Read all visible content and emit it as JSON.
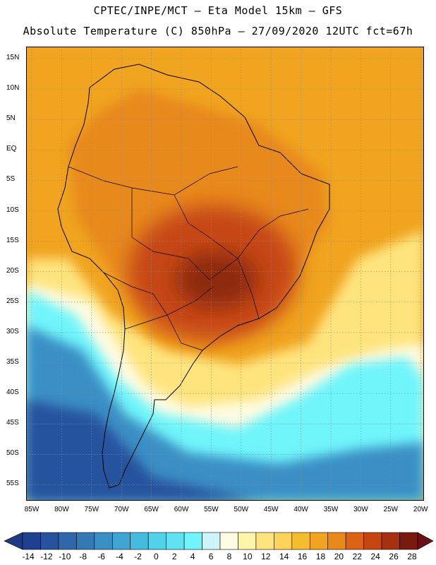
{
  "title_line1": "CPTEC/INPE/MCT –  Eta Model 15km – GFS",
  "title_line2": "Absolute Temperature (C) 850hPa – 27/09/2020 12UTC fct=67h",
  "lat_labels": [
    "15N",
    "10N",
    "5N",
    "EQ",
    "5S",
    "10S",
    "15S",
    "20S",
    "25S",
    "30S",
    "35S",
    "40S",
    "45S",
    "50S",
    "55S"
  ],
  "lon_labels": [
    "85W",
    "80W",
    "75W",
    "70W",
    "65W",
    "60W",
    "55W",
    "50W",
    "45W",
    "40W",
    "35W",
    "30W",
    "25W",
    "20W"
  ],
  "colorbar": {
    "labels": [
      "-14",
      "-12",
      "-10",
      "-8",
      "-6",
      "-4",
      "-2",
      "0",
      "2",
      "4",
      "6",
      "8",
      "10",
      "12",
      "14",
      "16",
      "18",
      "20",
      "22",
      "24",
      "26",
      "28"
    ],
    "colors": [
      "#1f3f90",
      "#27529e",
      "#2f66ac",
      "#3478b4",
      "#3a8fc4",
      "#3fa5d2",
      "#45bcdf",
      "#4fd2ea",
      "#5fe3f3",
      "#6ff5fb",
      "#cdf3fb",
      "#fffbe2",
      "#fff5a8",
      "#ffe47e",
      "#ffd35a",
      "#f5bd2e",
      "#f0a41f",
      "#e8891a",
      "#dd6314",
      "#c64612",
      "#a63010",
      "#7a1a0f"
    ],
    "low_arrow_color": "#1e3a84",
    "high_arrow_color": "#6b0f17"
  },
  "map_colors": {
    "ocean_north": "#f0a41f",
    "continent_warm": "#e8891a",
    "hot_core": "#c64612",
    "hottest_core": "#8e2a0d",
    "cold_south": "#27529e",
    "cold_mid": "#3a8fc4",
    "cyan_band": "#6ff5fb",
    "pale_band": "#fffbe2",
    "yellow_band": "#ffe47e",
    "border": "#000000",
    "grid": "#8a8a8a"
  }
}
